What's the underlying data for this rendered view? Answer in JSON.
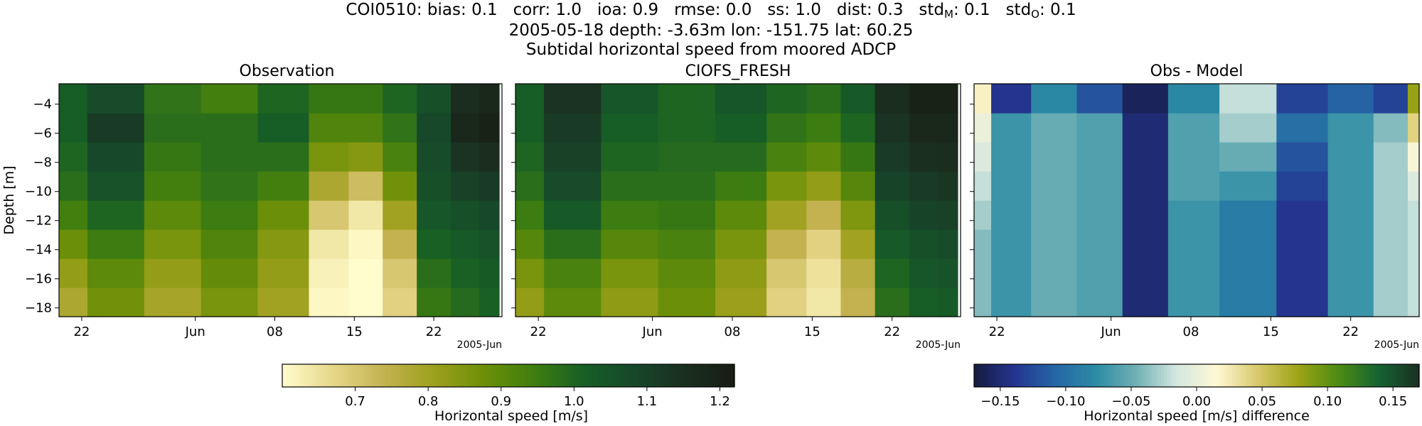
{
  "header": {
    "line1": {
      "station": "COI0510:",
      "bias_label": "bias:",
      "bias": "0.1",
      "corr_label": "corr:",
      "corr": "1.0",
      "ioa_label": "ioa:",
      "ioa": "0.9",
      "rmse_label": "rmse:",
      "rmse": "0.0",
      "ss_label": "ss:",
      "ss": "1.0",
      "dist_label": "dist:",
      "dist": "0.3",
      "stdm_label": "std",
      "stdm_sub": "M",
      "stdm": "0.1",
      "stdo_label": "std",
      "stdo_sub": "O",
      "stdo": "0.1"
    },
    "line2": "2005-05-18 depth: -3.63m lon: -151.75 lat: 60.25",
    "line3": "Subtidal horizontal speed from moored ADCP"
  },
  "chart_data": [
    {
      "type": "heatmap",
      "title": "Observation",
      "ylabel": "Depth [m]",
      "x_tick_labels": [
        "22",
        "Jun",
        "08",
        "15",
        "22"
      ],
      "x_tick_dates": [
        "2005-05-22",
        "2005-06-01",
        "2005-06-08",
        "2005-06-15",
        "2005-06-22"
      ],
      "x_offset_label": "2005-Jun",
      "xlim": [
        "2005-05-20",
        "2005-06-28"
      ],
      "y_ticks": [
        -4,
        -6,
        -8,
        -10,
        -12,
        -14,
        -16,
        -18
      ],
      "ylim": [
        -18.6,
        -2.6
      ],
      "depth_bins": [
        -3.63,
        -5.63,
        -7.63,
        -9.63,
        -11.63,
        -13.63,
        -15.63,
        -17.63
      ],
      "colormap": "speed (light yellow to dark green)",
      "color_range": [
        0.6,
        1.22
      ],
      "cells": [
        {
          "date": "2005-05-20",
          "values": [
            1.02,
            1.02,
            1.0,
            0.98,
            0.94,
            0.88,
            0.82,
            0.78
          ]
        },
        {
          "date": "2005-05-25",
          "values": [
            1.07,
            1.12,
            1.08,
            1.05,
            1.0,
            0.95,
            0.9,
            0.87
          ]
        },
        {
          "date": "2005-05-30",
          "values": [
            0.97,
            0.98,
            0.96,
            0.94,
            0.9,
            0.86,
            0.82,
            0.79
          ]
        },
        {
          "date": "2005-06-04",
          "values": [
            0.94,
            0.98,
            0.98,
            0.97,
            0.95,
            0.92,
            0.89,
            0.86
          ]
        },
        {
          "date": "2005-06-09",
          "values": [
            1.0,
            1.02,
            0.98,
            0.94,
            0.88,
            0.84,
            0.82,
            0.8
          ]
        },
        {
          "date": "2005-06-13",
          "values": [
            0.96,
            0.92,
            0.86,
            0.78,
            0.7,
            0.64,
            0.62,
            0.61
          ]
        },
        {
          "date": "2005-06-16",
          "values": [
            0.96,
            0.92,
            0.84,
            0.72,
            0.64,
            0.61,
            0.6,
            0.6
          ]
        },
        {
          "date": "2005-06-19",
          "values": [
            1.0,
            0.97,
            0.93,
            0.87,
            0.8,
            0.74,
            0.7,
            0.68
          ]
        },
        {
          "date": "2005-06-22",
          "values": [
            1.06,
            1.08,
            1.07,
            1.06,
            1.04,
            1.01,
            0.98,
            0.96
          ]
        },
        {
          "date": "2005-06-25",
          "values": [
            1.16,
            1.18,
            1.14,
            1.1,
            1.06,
            1.03,
            1.01,
            0.99
          ]
        },
        {
          "date": "2005-06-27",
          "values": [
            1.18,
            1.2,
            1.16,
            1.12,
            1.08,
            1.05,
            1.03,
            1.01
          ]
        }
      ]
    },
    {
      "type": "heatmap",
      "title": "CIOFS_FRESH",
      "x_tick_labels": [
        "22",
        "Jun",
        "08",
        "15",
        "22"
      ],
      "x_tick_dates": [
        "2005-05-22",
        "2005-06-01",
        "2005-06-08",
        "2005-06-15",
        "2005-06-22"
      ],
      "x_offset_label": "2005-Jun",
      "xlim": [
        "2005-05-20",
        "2005-06-28"
      ],
      "y_ticks": [
        -4,
        -6,
        -8,
        -10,
        -12,
        -14,
        -16,
        -18
      ],
      "ylim": [
        -18.6,
        -2.6
      ],
      "depth_bins": [
        -3.63,
        -5.63,
        -7.63,
        -9.63,
        -11.63,
        -13.63,
        -15.63,
        -17.63
      ],
      "colormap": "speed (light yellow to dark green)",
      "color_range": [
        0.6,
        1.22
      ],
      "cells": [
        {
          "date": "2005-05-20",
          "values": [
            1.02,
            1.02,
            1.0,
            0.98,
            0.95,
            0.91,
            0.86,
            0.82
          ]
        },
        {
          "date": "2005-05-25",
          "values": [
            1.14,
            1.12,
            1.1,
            1.07,
            1.03,
            0.98,
            0.93,
            0.9
          ]
        },
        {
          "date": "2005-05-30",
          "values": [
            1.04,
            1.02,
            1.0,
            0.98,
            0.95,
            0.91,
            0.86,
            0.83
          ]
        },
        {
          "date": "2005-06-04",
          "values": [
            1.0,
            1.0,
            0.99,
            0.98,
            0.96,
            0.93,
            0.9,
            0.88
          ]
        },
        {
          "date": "2005-06-09",
          "values": [
            1.04,
            1.02,
            0.99,
            0.95,
            0.9,
            0.86,
            0.83,
            0.81
          ]
        },
        {
          "date": "2005-06-13",
          "values": [
            1.0,
            0.97,
            0.93,
            0.86,
            0.8,
            0.74,
            0.7,
            0.68
          ]
        },
        {
          "date": "2005-06-16",
          "values": [
            0.98,
            0.95,
            0.9,
            0.82,
            0.74,
            0.68,
            0.65,
            0.64
          ]
        },
        {
          "date": "2005-06-19",
          "values": [
            1.03,
            1.0,
            0.96,
            0.91,
            0.85,
            0.8,
            0.76,
            0.74
          ]
        },
        {
          "date": "2005-06-22",
          "values": [
            1.16,
            1.14,
            1.12,
            1.09,
            1.06,
            1.03,
            1.0,
            0.98
          ]
        },
        {
          "date": "2005-06-25",
          "values": [
            1.2,
            1.18,
            1.15,
            1.12,
            1.09,
            1.06,
            1.04,
            1.02
          ]
        },
        {
          "date": "2005-06-27",
          "values": [
            1.2,
            1.18,
            1.16,
            1.13,
            1.1,
            1.07,
            1.05,
            1.03
          ]
        }
      ]
    },
    {
      "type": "heatmap",
      "title": "Obs - Model",
      "x_tick_labels": [
        "22",
        "Jun",
        "08",
        "15",
        "22"
      ],
      "x_tick_dates": [
        "2005-05-22",
        "2005-06-01",
        "2005-06-08",
        "2005-06-15",
        "2005-06-22"
      ],
      "x_offset_label": "2005-Jun",
      "xlim": [
        "2005-05-20",
        "2005-06-28"
      ],
      "y_ticks": [
        -4,
        -6,
        -8,
        -10,
        -12,
        -14,
        -16,
        -18
      ],
      "ylim": [
        -18.6,
        -2.6
      ],
      "depth_bins": [
        -3.63,
        -5.63,
        -7.63,
        -9.63,
        -11.63,
        -13.63,
        -15.63,
        -17.63
      ],
      "colormap": "diverging (dark blue - white/cream - dark green)",
      "color_range": [
        -0.17,
        0.17
      ],
      "cells": [
        {
          "date": "2005-05-20",
          "values": [
            0.02,
            0.0,
            -0.01,
            -0.02,
            -0.03,
            -0.04,
            -0.04,
            -0.04
          ]
        },
        {
          "date": "2005-05-23",
          "values": [
            -0.14,
            -0.07,
            -0.07,
            -0.07,
            -0.07,
            -0.07,
            -0.07,
            -0.07
          ]
        },
        {
          "date": "2005-05-27",
          "values": [
            -0.08,
            -0.05,
            -0.05,
            -0.05,
            -0.05,
            -0.05,
            -0.05,
            -0.05
          ]
        },
        {
          "date": "2005-05-31",
          "values": [
            -0.12,
            -0.06,
            -0.06,
            -0.06,
            -0.06,
            -0.06,
            -0.06,
            -0.06
          ]
        },
        {
          "date": "2005-06-04",
          "values": [
            -0.16,
            -0.15,
            -0.15,
            -0.15,
            -0.15,
            -0.15,
            -0.15,
            -0.15
          ]
        },
        {
          "date": "2005-06-08",
          "values": [
            -0.08,
            -0.06,
            -0.06,
            -0.06,
            -0.07,
            -0.07,
            -0.07,
            -0.07
          ]
        },
        {
          "date": "2005-06-13",
          "values": [
            -0.02,
            -0.03,
            -0.05,
            -0.07,
            -0.09,
            -0.09,
            -0.09,
            -0.09
          ]
        },
        {
          "date": "2005-06-18",
          "values": [
            -0.13,
            -0.1,
            -0.12,
            -0.13,
            -0.14,
            -0.14,
            -0.14,
            -0.14
          ]
        },
        {
          "date": "2005-06-22",
          "values": [
            -0.11,
            -0.07,
            -0.07,
            -0.07,
            -0.07,
            -0.07,
            -0.07,
            -0.07
          ]
        },
        {
          "date": "2005-06-26",
          "values": [
            -0.13,
            -0.04,
            -0.03,
            -0.03,
            -0.03,
            -0.03,
            -0.03,
            -0.03
          ]
        },
        {
          "date": "2005-06-28",
          "values": [
            0.08,
            0.04,
            0.01,
            -0.01,
            -0.02,
            -0.02,
            -0.02,
            -0.02
          ]
        }
      ]
    }
  ],
  "colorbars": [
    {
      "label": "Horizontal speed [m/s]",
      "range": [
        0.6,
        1.22
      ],
      "ticks": [
        0.7,
        0.8,
        0.9,
        1.0,
        1.1,
        1.2
      ],
      "tick_labels": [
        "0.7",
        "0.8",
        "0.9",
        "1.0",
        "1.1",
        "1.2"
      ]
    },
    {
      "label": "Horizontal speed [m/s] difference",
      "range": [
        -0.17,
        0.17
      ],
      "ticks": [
        -0.15,
        -0.1,
        -0.05,
        0.0,
        0.05,
        0.1,
        0.15
      ],
      "tick_labels": [
        "−0.15",
        "−0.10",
        "−0.05",
        "0.00",
        "0.05",
        "0.10",
        "0.15"
      ]
    }
  ],
  "colors": {
    "speed_scale": [
      "#fffccd",
      "#e7d78a",
      "#c4b351",
      "#9da01c",
      "#6e9008",
      "#3f7e0f",
      "#175f26",
      "#17472a",
      "#1a2f20",
      "#191c14"
    ],
    "diff_scale": [
      "#161c3f",
      "#243591",
      "#2566a5",
      "#2c8ba5",
      "#6fb0b5",
      "#d4e7e0",
      "#fff8d4",
      "#d9c96c",
      "#9ea415",
      "#4d8c13",
      "#166332",
      "#1c3025"
    ]
  }
}
